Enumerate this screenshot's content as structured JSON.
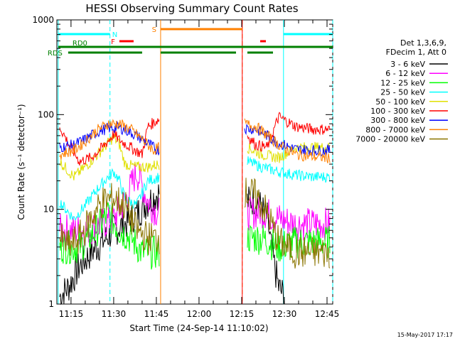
{
  "chart_data": {
    "type": "line",
    "title": "HESSI Observing Summary Count Rates",
    "xlabel": "Start Time (24-Sep-14 11:10:02)",
    "ylabel": "Count Rate (s⁻¹ detector⁻¹)",
    "y_scale": "log",
    "ylim": [
      1,
      1000
    ],
    "xlim_minutes_after_1100": [
      10.03,
      107.0
    ],
    "x_ticks": [
      "11:15",
      "11:30",
      "11:45",
      "12:00",
      "12:15",
      "12:30",
      "12:45"
    ],
    "x_tick_minutes": [
      15,
      30,
      45,
      60,
      75,
      90,
      105
    ],
    "y_ticks": [
      "1",
      "10",
      "100",
      "1000"
    ],
    "legend_header": [
      "Det 1,3,6,9,",
      "FDecim 1, Att 0"
    ],
    "data_gap_minutes": [
      [
        46.5,
        75.2
      ]
    ],
    "series": [
      {
        "name": "3 - 6 keV",
        "color": "#000000",
        "values": [
          [
            11,
            1.2
          ],
          [
            14,
            1.5
          ],
          [
            18,
            2.5
          ],
          [
            22,
            3.5
          ],
          [
            26,
            4.5
          ],
          [
            30,
            6
          ],
          [
            34,
            7
          ],
          [
            38,
            9
          ],
          [
            42,
            12
          ],
          [
            46,
            15
          ],
          [
            77,
            12
          ],
          [
            80,
            13
          ],
          [
            84,
            8
          ],
          [
            86,
            3
          ],
          [
            88,
            1.5
          ],
          [
            90,
            1.2
          ]
        ]
      },
      {
        "name": "6 - 12 keV",
        "color": "#ff00ff",
        "values": [
          [
            11,
            6
          ],
          [
            20,
            6
          ],
          [
            26,
            7
          ],
          [
            30,
            8
          ],
          [
            34,
            12
          ],
          [
            38,
            25
          ],
          [
            40,
            18
          ],
          [
            42,
            12
          ],
          [
            46,
            9
          ],
          [
            77,
            9
          ],
          [
            82,
            9.5
          ],
          [
            88,
            8
          ],
          [
            94,
            7
          ],
          [
            100,
            7
          ],
          [
            106,
            7
          ]
        ]
      },
      {
        "name": "12 - 25 keV",
        "color": "#00ff00",
        "values": [
          [
            11,
            4
          ],
          [
            18,
            4
          ],
          [
            24,
            6
          ],
          [
            28,
            9
          ],
          [
            32,
            6
          ],
          [
            36,
            5
          ],
          [
            40,
            3.5
          ],
          [
            46,
            3.5
          ],
          [
            77,
            5
          ],
          [
            82,
            5
          ],
          [
            88,
            4
          ],
          [
            94,
            4.5
          ],
          [
            100,
            4.5
          ],
          [
            106,
            4.5
          ]
        ]
      },
      {
        "name": "25 - 50 keV",
        "color": "#00ffff",
        "values": [
          [
            11,
            12
          ],
          [
            16,
            8
          ],
          [
            20,
            11
          ],
          [
            24,
            16
          ],
          [
            28,
            22
          ],
          [
            30,
            25
          ],
          [
            32,
            20
          ],
          [
            34,
            13
          ],
          [
            38,
            11
          ],
          [
            42,
            20
          ],
          [
            46,
            22
          ],
          [
            77,
            32
          ],
          [
            82,
            28
          ],
          [
            88,
            25
          ],
          [
            94,
            23
          ],
          [
            100,
            22
          ],
          [
            106,
            22
          ]
        ]
      },
      {
        "name": "50 - 100 keV",
        "color": "#e0e000",
        "values": [
          [
            11,
            32
          ],
          [
            16,
            22
          ],
          [
            20,
            28
          ],
          [
            24,
            37
          ],
          [
            28,
            50
          ],
          [
            30,
            58
          ],
          [
            32,
            48
          ],
          [
            34,
            30
          ],
          [
            38,
            28
          ],
          [
            42,
            28
          ],
          [
            46,
            30
          ],
          [
            77,
            45
          ],
          [
            82,
            38
          ],
          [
            88,
            35
          ],
          [
            94,
            45
          ],
          [
            100,
            45
          ],
          [
            106,
            45
          ]
        ]
      },
      {
        "name": "100 - 300 keV",
        "color": "#ff0000",
        "values": [
          [
            11,
            75
          ],
          [
            14,
            50
          ],
          [
            18,
            32
          ],
          [
            22,
            35
          ],
          [
            26,
            45
          ],
          [
            30,
            62
          ],
          [
            32,
            54
          ],
          [
            36,
            45
          ],
          [
            40,
            38
          ],
          [
            42,
            75
          ],
          [
            46,
            90
          ],
          [
            77,
            60
          ],
          [
            80,
            48
          ],
          [
            84,
            45
          ],
          [
            88,
            95
          ],
          [
            94,
            75
          ],
          [
            100,
            70
          ],
          [
            106,
            70
          ]
        ]
      },
      {
        "name": "300 - 800 keV",
        "color": "#0000ff",
        "values": [
          [
            11,
            45
          ],
          [
            16,
            48
          ],
          [
            20,
            55
          ],
          [
            24,
            65
          ],
          [
            28,
            72
          ],
          [
            32,
            73
          ],
          [
            36,
            65
          ],
          [
            40,
            55
          ],
          [
            44,
            45
          ],
          [
            46,
            42
          ],
          [
            76,
            72
          ],
          [
            80,
            70
          ],
          [
            84,
            60
          ],
          [
            88,
            50
          ],
          [
            94,
            43
          ],
          [
            100,
            42
          ],
          [
            106,
            42
          ]
        ]
      },
      {
        "name": "800 - 7000 keV",
        "color": "#ff8000",
        "values": [
          [
            11,
            38
          ],
          [
            16,
            42
          ],
          [
            20,
            52
          ],
          [
            24,
            68
          ],
          [
            28,
            80
          ],
          [
            32,
            80
          ],
          [
            36,
            70
          ],
          [
            40,
            55
          ],
          [
            44,
            42
          ],
          [
            46,
            45
          ],
          [
            76,
            80
          ],
          [
            80,
            75
          ],
          [
            84,
            60
          ],
          [
            88,
            48
          ],
          [
            94,
            38
          ],
          [
            100,
            36
          ],
          [
            106,
            35
          ]
        ]
      },
      {
        "name": "7000 - 20000 keV",
        "color": "#8b7500",
        "values": [
          [
            11,
            5
          ],
          [
            14,
            4
          ],
          [
            18,
            5
          ],
          [
            22,
            8
          ],
          [
            26,
            12
          ],
          [
            30,
            13
          ],
          [
            34,
            11
          ],
          [
            38,
            6
          ],
          [
            42,
            5
          ],
          [
            46,
            5
          ],
          [
            76,
            15
          ],
          [
            80,
            14
          ],
          [
            84,
            9
          ],
          [
            88,
            4.5
          ],
          [
            94,
            3.5
          ],
          [
            100,
            3.5
          ],
          [
            106,
            3.5
          ]
        ]
      }
    ],
    "vertical_lines": [
      {
        "minute": 10.5,
        "color": "#00ffff",
        "style": "solid"
      },
      {
        "minute": 28.7,
        "color": "#00ffff",
        "style": "dashed"
      },
      {
        "minute": 46.5,
        "color": "#ff8000",
        "style": "solid"
      },
      {
        "minute": 75.2,
        "color": "#ff8000",
        "style": "dashed"
      },
      {
        "minute": 75.2,
        "color": "#ff0000",
        "style": "solid"
      },
      {
        "minute": 89.7,
        "color": "#00ffff",
        "style": "solid"
      },
      {
        "minute": 107.0,
        "color": "#00ffff",
        "style": "dashed"
      }
    ],
    "flag_bars": [
      {
        "label": "N",
        "color": "#00ffff",
        "level": 0,
        "segments": [
          [
            10.5,
            28.7
          ],
          [
            89.7,
            107
          ]
        ]
      },
      {
        "label": "F",
        "color": "#ff0000",
        "level": 1,
        "segments": [
          [
            32,
            37
          ],
          [
            81.5,
            83.5
          ]
        ]
      },
      {
        "label": "S",
        "color": "#ff8000",
        "level": -1,
        "segments": [
          [
            46.5,
            75.2
          ]
        ]
      },
      {
        "label": "RD0",
        "color": "#008000",
        "level": 2,
        "segments": [
          [
            10.5,
            107
          ]
        ]
      },
      {
        "label": "RDS",
        "color": "#008000",
        "level": 3,
        "segments": [
          [
            14,
            40
          ],
          [
            46.5,
            73
          ],
          [
            77,
            86
          ]
        ]
      }
    ]
  },
  "footer": {
    "date": "15-May-2017 17:17"
  }
}
